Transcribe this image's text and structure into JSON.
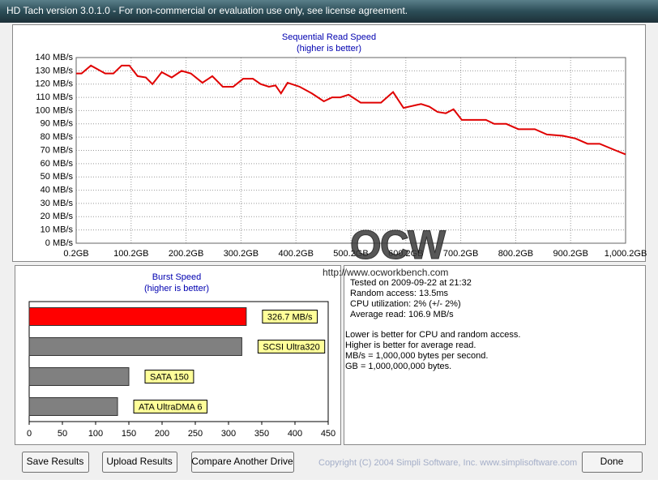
{
  "window": {
    "title": "HD Tach version 3.0.1.0  - For non-commercial or evaluation use only, see license agreement."
  },
  "chart_data": [
    {
      "type": "line",
      "title": "Sequential Read Speed",
      "subtitle": "(higher is better)",
      "x": [
        0.2,
        10,
        27,
        53,
        68,
        83,
        97,
        112,
        127,
        139,
        156,
        174,
        192,
        209,
        230,
        248,
        267,
        286,
        304,
        322,
        336,
        351,
        363,
        373,
        385,
        407,
        429,
        451,
        466,
        481,
        496,
        518,
        555,
        577,
        596,
        617,
        628,
        643,
        658,
        673,
        687,
        702,
        746,
        761,
        783,
        805,
        835,
        857,
        886,
        909,
        931,
        953,
        982,
        1000.2
      ],
      "values": [
        128,
        128,
        134,
        128,
        128,
        134,
        134,
        126,
        125,
        120,
        129,
        125,
        130,
        128,
        121,
        126,
        118,
        118,
        124,
        124,
        120,
        118,
        119,
        113,
        121,
        118,
        113,
        107,
        110,
        110,
        112,
        106,
        106,
        114,
        102,
        104,
        105,
        103,
        99,
        98,
        101,
        93,
        93,
        90,
        90,
        86,
        86,
        82,
        81,
        79,
        75,
        75,
        70,
        67
      ],
      "color": "#e00000",
      "xlim": [
        0.2,
        1000.2
      ],
      "xticks": [
        {
          "value": 0.2,
          "label": "0.2GB"
        },
        {
          "value": 100.2,
          "label": "100.2GB"
        },
        {
          "value": 200.2,
          "label": "200.2GB"
        },
        {
          "value": 300.2,
          "label": "300.2GB"
        },
        {
          "value": 400.2,
          "label": "400.2GB"
        },
        {
          "value": 500.2,
          "label": "500.2GB"
        },
        {
          "value": 600.2,
          "label": "600.2GB"
        },
        {
          "value": 700.2,
          "label": "700.2GB"
        },
        {
          "value": 800.2,
          "label": "800.2GB"
        },
        {
          "value": 900.2,
          "label": "900.2GB"
        },
        {
          "value": 1000.2,
          "label": "1,000.2GB"
        }
      ],
      "ylim": [
        0,
        140
      ],
      "yticks": [
        {
          "value": 0,
          "label": "0 MB/s"
        },
        {
          "value": 10,
          "label": "10 MB/s"
        },
        {
          "value": 20,
          "label": "20 MB/s"
        },
        {
          "value": 30,
          "label": "30 MB/s"
        },
        {
          "value": 40,
          "label": "40 MB/s"
        },
        {
          "value": 50,
          "label": "50 MB/s"
        },
        {
          "value": 60,
          "label": "60 MB/s"
        },
        {
          "value": 70,
          "label": "70 MB/s"
        },
        {
          "value": 80,
          "label": "80 MB/s"
        },
        {
          "value": 90,
          "label": "90 MB/s"
        },
        {
          "value": 100,
          "label": "100 MB/s"
        },
        {
          "value": 110,
          "label": "110 MB/s"
        },
        {
          "value": 120,
          "label": "120 MB/s"
        },
        {
          "value": 130,
          "label": "130 MB/s"
        },
        {
          "value": 140,
          "label": "140 MB/s"
        }
      ],
      "grid": true
    },
    {
      "type": "hbar",
      "title": "Burst Speed",
      "subtitle": "(higher is better)",
      "categories": [
        null,
        "SCSI Ultra320",
        "SATA 150",
        "ATA UltraDMA 6"
      ],
      "values": [
        326.7,
        320,
        150,
        133
      ],
      "value_labels": [
        "326.7 MB/s",
        null,
        null,
        null
      ],
      "colors": [
        "#ff0000",
        "#808080",
        "#808080",
        "#808080"
      ],
      "xlim": [
        0,
        450
      ],
      "xticks": [
        0,
        50,
        100,
        150,
        200,
        250,
        300,
        350,
        400,
        450
      ]
    }
  ],
  "watermark": {
    "logo": "OCW",
    "url": "http://www.ocworkbench.com"
  },
  "info": {
    "results": [
      "Tested on 2009-09-22 at 21:32",
      "Random access: 13.5ms",
      "CPU utilization: 2% (+/- 2%)",
      "Average read: 106.9 MB/s"
    ],
    "notes": [
      "Lower is better for CPU and random access.",
      "Higher is better for average read.",
      "MB/s = 1,000,000 bytes per second.",
      "GB = 1,000,000,000 bytes."
    ]
  },
  "buttons": [
    "Save Results",
    "Upload Results",
    "Compare Another Drive",
    "Done"
  ],
  "copyright": "Copyright (C) 2004 Simpli Software, Inc. www.simplisoftware.com"
}
